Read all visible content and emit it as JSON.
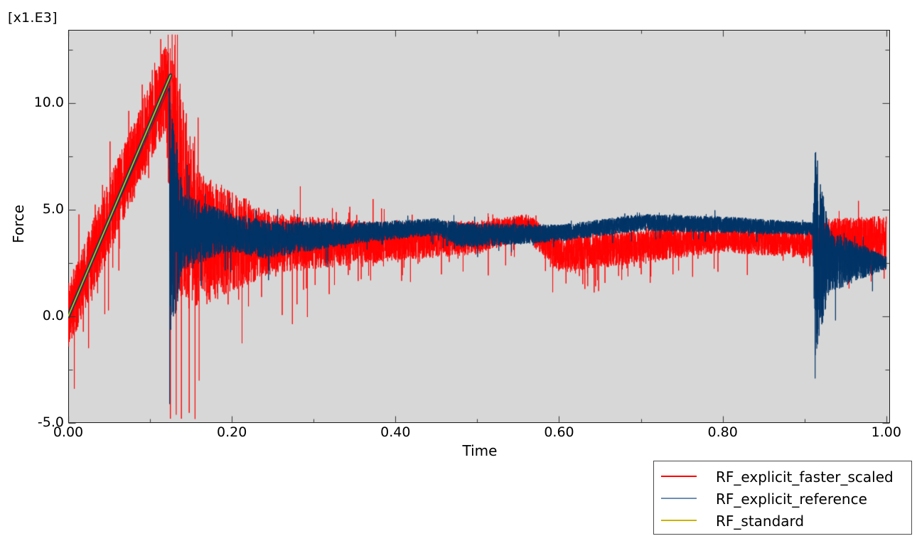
{
  "chart_data": {
    "type": "line",
    "title": "",
    "xlabel": "Time",
    "ylabel": "Force",
    "y_scale_label": "[x1.E3]",
    "xlim": [
      0.0,
      1.0045
    ],
    "ylim": [
      -5.0,
      13.43
    ],
    "grid": false,
    "background": "#d7d7d7",
    "x_ticks": [
      {
        "value": 0.0,
        "label": "0.00"
      },
      {
        "value": 0.2,
        "label": "0.20"
      },
      {
        "value": 0.4,
        "label": "0.40"
      },
      {
        "value": 0.6,
        "label": "0.60"
      },
      {
        "value": 0.8,
        "label": "0.80"
      },
      {
        "value": 1.0,
        "label": "1.00"
      }
    ],
    "x_minor_ticks": [
      0.1,
      0.3,
      0.5,
      0.7,
      0.9
    ],
    "y_ticks": [
      {
        "value": -5.0,
        "label": "-5.0"
      },
      {
        "value": 0.0,
        "label": "0.0"
      },
      {
        "value": 5.0,
        "label": "5.0"
      },
      {
        "value": 10.0,
        "label": "10.0"
      }
    ],
    "y_minor_ticks": [
      -2.5,
      2.5,
      7.5,
      12.5
    ],
    "legend_position": "bottom-right, outside plot",
    "series": [
      {
        "name": "RF_explicit_faster_scaled",
        "color": "#ff0000",
        "description": "Noisy red signal: linear ramp 0 to ~11.5 (x1E3) until t=0.125, then decays with large spikes (min ~-4.8 at t~0.13-0.155) settling near 3.2-3.8; dips to ~2.3 around t=0.57-0.65; oscillates 2.5-4.8 after t=0.92",
        "envelope": [
          {
            "t": 0.0,
            "mean": 0.0,
            "amp": 1.6
          },
          {
            "t": 0.06,
            "mean": 5.6,
            "amp": 1.8
          },
          {
            "t": 0.12,
            "mean": 10.8,
            "amp": 2.0
          },
          {
            "t": 0.125,
            "mean": 7.0,
            "amp": 6.0
          },
          {
            "t": 0.16,
            "mean": 3.6,
            "amp": 3.2
          },
          {
            "t": 0.25,
            "mean": 3.4,
            "amp": 1.4
          },
          {
            "t": 0.4,
            "mean": 3.5,
            "amp": 0.9
          },
          {
            "t": 0.5,
            "mean": 3.7,
            "amp": 0.8
          },
          {
            "t": 0.56,
            "mean": 4.2,
            "amp": 0.6
          },
          {
            "t": 0.6,
            "mean": 2.9,
            "amp": 0.9
          },
          {
            "t": 0.7,
            "mean": 3.3,
            "amp": 0.8
          },
          {
            "t": 0.8,
            "mean": 3.6,
            "amp": 0.6
          },
          {
            "t": 0.9,
            "mean": 3.4,
            "amp": 0.7
          },
          {
            "t": 0.915,
            "mean": 3.5,
            "amp": 0.6
          },
          {
            "t": 0.93,
            "mean": 3.6,
            "amp": 1.0
          },
          {
            "t": 1.0,
            "mean": 3.6,
            "amp": 1.1
          }
        ],
        "extrema": {
          "max": 13.2,
          "max_t": 0.127,
          "min": -4.8,
          "min_t": 0.155
        }
      },
      {
        "name": "RF_explicit_reference",
        "color": "#003366",
        "description": "Dark blue signal: clean linear ramp to ~10.8 at t=0.124, sharp drop (min ~-4.0 at t=0.124), dense band ~3.0-5.0 narrowing around 4.0-4.3 across mid range; spike to ~7.3 and dip to ~-2.8 at t~0.913, then decays to ~2.5 at t=1.0",
        "envelope": [
          {
            "t": 0.0,
            "mean": 0.0,
            "amp": 0.0
          },
          {
            "t": 0.123,
            "mean": 10.7,
            "amp": 0.0
          },
          {
            "t": 0.125,
            "mean": 4.5,
            "amp": 6.0
          },
          {
            "t": 0.14,
            "mean": 4.0,
            "amp": 1.8
          },
          {
            "t": 0.2,
            "mean": 3.9,
            "amp": 0.9
          },
          {
            "t": 0.24,
            "mean": 3.6,
            "amp": 0.9
          },
          {
            "t": 0.35,
            "mean": 3.9,
            "amp": 0.5
          },
          {
            "t": 0.45,
            "mean": 4.2,
            "amp": 0.4
          },
          {
            "t": 0.48,
            "mean": 3.8,
            "amp": 0.6
          },
          {
            "t": 0.6,
            "mean": 3.9,
            "amp": 0.4
          },
          {
            "t": 0.7,
            "mean": 4.4,
            "amp": 0.4
          },
          {
            "t": 0.8,
            "mean": 4.3,
            "amp": 0.4
          },
          {
            "t": 0.91,
            "mean": 4.1,
            "amp": 0.3
          },
          {
            "t": 0.913,
            "mean": 3.0,
            "amp": 5.0
          },
          {
            "t": 0.93,
            "mean": 2.6,
            "amp": 1.5
          },
          {
            "t": 1.0,
            "mean": 2.5,
            "amp": 0.3
          }
        ],
        "extrema": {
          "max": 10.8,
          "max_t": 0.124,
          "min": -4.0,
          "min_t": 0.124
        }
      },
      {
        "name": "RF_standard",
        "color": "#c8b400",
        "description": "Yellow smooth linear ramp from (0.0, 0.0) to (0.125, 11.3)",
        "x": [
          0.0,
          0.125
        ],
        "values": [
          0.0,
          11.3
        ]
      }
    ]
  },
  "legend": {
    "items": [
      {
        "label": "RF_explicit_faster_scaled",
        "color": "#ff0000"
      },
      {
        "label": "RF_explicit_reference",
        "color": "#6d8fb3"
      },
      {
        "label": "RF_standard",
        "color": "#c8b400"
      }
    ]
  }
}
